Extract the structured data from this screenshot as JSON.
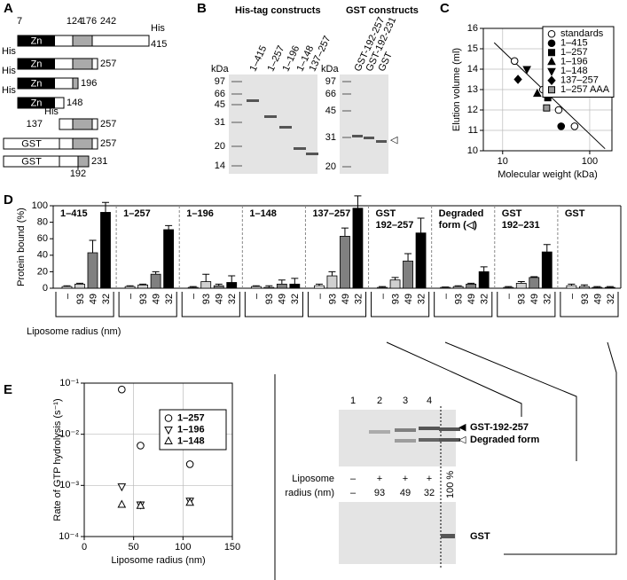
{
  "panel_labels": [
    "A",
    "B",
    "C",
    "D",
    "E"
  ],
  "panel_a": {
    "positions": [
      "7",
      "124",
      "176",
      "242"
    ],
    "constructs": [
      {
        "tag": "His",
        "domain": "Zn",
        "end": "415"
      },
      {
        "tag": "His",
        "domain": "Zn",
        "end": "257"
      },
      {
        "tag": "His",
        "domain": "Zn",
        "end": "196"
      },
      {
        "tag": "His",
        "domain": "Zn",
        "end": "148"
      },
      {
        "tag": "His",
        "start": "137",
        "end": "257"
      },
      {
        "tag": "GST",
        "end": "257"
      },
      {
        "tag": "GST",
        "end": "231",
        "start_below": "192"
      }
    ]
  },
  "panel_b": {
    "headers": [
      "His-tag constructs",
      "GST constructs"
    ],
    "unit": "kDa",
    "markers_left": [
      "97",
      "66",
      "45",
      "31",
      "20",
      "14"
    ],
    "markers_right": [
      "97",
      "66",
      "45",
      "31",
      "20"
    ],
    "lanes_left": [
      "1–415",
      "1–257",
      "1–196",
      "1–148",
      "137–257"
    ],
    "lanes_right": [
      "GST-192-257",
      "GST-192-231",
      "GST"
    ],
    "arrow": "◁"
  },
  "chart_data": [
    {
      "type": "scatter",
      "xlabel": "Molecular weight (kDa)",
      "ylabel": "Elution volume (ml)",
      "xscale": "log",
      "xlim": [
        6,
        180
      ],
      "xticks": [
        10,
        100
      ],
      "ylim": [
        10,
        16
      ],
      "yticks": [
        10,
        11,
        12,
        13,
        14,
        15,
        16
      ],
      "grid": true,
      "legend": "upper right",
      "trend_line": {
        "x": [
          8,
          150
        ],
        "y": [
          15.3,
          10.1
        ]
      },
      "series": [
        {
          "name": "standards",
          "marker": "circle-open",
          "color": "#000000",
          "x": [
            13.7,
            29,
            44,
            67
          ],
          "y": [
            14.4,
            13.0,
            12.0,
            11.2
          ]
        },
        {
          "name": "1–415",
          "marker": "circle",
          "color": "#000000",
          "x": [
            47
          ],
          "y": [
            11.2
          ]
        },
        {
          "name": "1–257",
          "marker": "square",
          "color": "#000000",
          "x": [
            33
          ],
          "y": [
            12.6
          ]
        },
        {
          "name": "1–196",
          "marker": "triangle-up",
          "color": "#000000",
          "x": [
            25
          ],
          "y": [
            12.8
          ]
        },
        {
          "name": "1–148",
          "marker": "triangle-down",
          "color": "#000000",
          "x": [
            19
          ],
          "y": [
            14.0
          ]
        },
        {
          "name": "137–257",
          "marker": "diamond",
          "color": "#000000",
          "x": [
            15
          ],
          "y": [
            13.5
          ]
        },
        {
          "name": "1–257 AAA",
          "marker": "square",
          "color": "#999999",
          "x": [
            32
          ],
          "y": [
            12.1
          ]
        }
      ]
    },
    {
      "type": "grouped_bar",
      "ylabel": "Protein bound (%)",
      "xlabel": "Liposome radius (nm)",
      "ylim": [
        0,
        100
      ],
      "yticks": [
        0,
        20,
        40,
        60,
        80,
        100
      ],
      "categories": [
        "–",
        "93",
        "49",
        "32"
      ],
      "colors": [
        "#ffffff",
        "#d0d0d0",
        "#808080",
        "#000000"
      ],
      "groups": [
        {
          "name": [
            "1–415"
          ],
          "values": [
            2,
            5,
            43,
            92
          ],
          "errors": [
            1,
            1,
            15,
            12
          ]
        },
        {
          "name": [
            "1–257"
          ],
          "values": [
            2,
            4,
            17,
            71
          ],
          "errors": [
            1,
            1,
            3,
            5
          ]
        },
        {
          "name": [
            "1–196"
          ],
          "values": [
            1,
            8,
            3,
            7
          ],
          "errors": [
            1,
            9,
            2,
            8
          ]
        },
        {
          "name": [
            "1–148"
          ],
          "values": [
            2,
            1,
            5,
            5
          ],
          "errors": [
            1,
            2,
            5,
            7
          ]
        },
        {
          "name": [
            "137–257"
          ],
          "values": [
            3,
            15,
            63,
            97
          ],
          "errors": [
            2,
            5,
            10,
            15
          ]
        },
        {
          "name": [
            "GST",
            "192–257"
          ],
          "values": [
            1,
            10,
            33,
            67
          ],
          "errors": [
            1,
            3,
            9,
            18
          ]
        },
        {
          "name": [
            "Degraded",
            "form (◁)"
          ],
          "values": [
            1,
            2,
            5,
            20
          ],
          "errors": [
            0.5,
            1,
            1,
            6
          ]
        },
        {
          "name": [
            "GST",
            "192–231"
          ],
          "values": [
            1,
            6,
            13,
            44
          ],
          "errors": [
            1,
            2,
            1,
            9
          ]
        },
        {
          "name": [
            "GST"
          ],
          "values": [
            3,
            2,
            1,
            1
          ],
          "errors": [
            2,
            2,
            1,
            1
          ]
        }
      ]
    },
    {
      "type": "scatter",
      "xlabel": "Liposome radius (nm)",
      "ylabel": "Rate of GTP hydrolysis (s⁻¹)",
      "yscale": "log",
      "xlim": [
        0,
        150
      ],
      "xticks": [
        0,
        50,
        100,
        150
      ],
      "ylim": [
        0.0001,
        0.1
      ],
      "yticks": [
        {
          "value": 0.0001,
          "label": "10⁻⁴"
        },
        {
          "value": 0.001,
          "label": "10⁻³"
        },
        {
          "value": 0.01,
          "label": "10⁻²"
        },
        {
          "value": 0.1,
          "label": "10⁻¹"
        }
      ],
      "grid": true,
      "legend": "upper right",
      "series": [
        {
          "name": "1–257",
          "marker": "circle-open",
          "color": "#000000",
          "x": [
            38,
            57,
            107
          ],
          "y": [
            0.075,
            0.006,
            0.0026
          ]
        },
        {
          "name": "1–196",
          "marker": "triangle-down-open",
          "color": "#000000",
          "x": [
            38,
            57,
            107
          ],
          "y": [
            0.00095,
            0.00042,
            0.0005
          ]
        },
        {
          "name": "1–148",
          "marker": "triangle-up-open",
          "color": "#000000",
          "x": [
            38,
            57,
            107
          ],
          "y": [
            0.00042,
            0.0004,
            0.00046
          ]
        }
      ]
    }
  ],
  "gel_e": {
    "lanes": [
      "1",
      "2",
      "3",
      "4"
    ],
    "bands": [
      "GST-192-257",
      "Degraded form"
    ],
    "band_arrows": [
      "◀",
      "◁"
    ],
    "row_labels": [
      "Liposome",
      "radius (nm)"
    ],
    "liposome": [
      "–",
      "+",
      "+",
      "+"
    ],
    "radius": [
      "–",
      "93",
      "49",
      "32"
    ],
    "reference": "100 %",
    "lower_band": "GST"
  }
}
